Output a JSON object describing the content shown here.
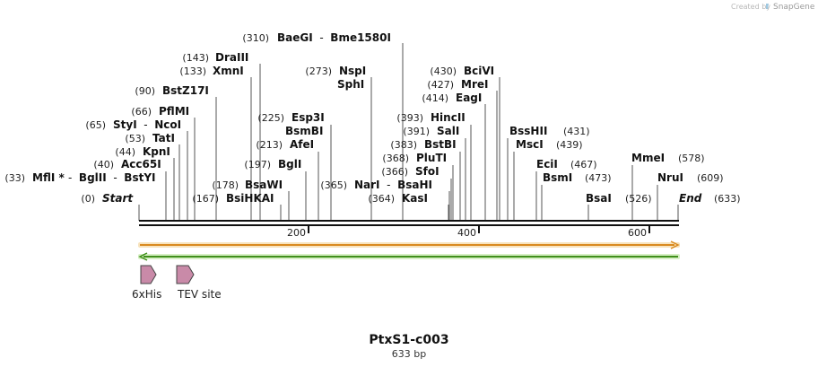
{
  "credit": {
    "prefix": "Created by",
    "brand": "SnapGene"
  },
  "map": {
    "name": "PtxS1-c003",
    "length_label": "633 bp",
    "total_bp": 633
  },
  "ruler": {
    "ticks": [
      "200",
      "400",
      "600"
    ],
    "tick_values": [
      200,
      400,
      600
    ]
  },
  "sites": [
    {
      "pos": 310,
      "pos_label": "(310)",
      "parts": [
        {
          "t": "BaeGI",
          "b": true
        },
        {
          "t": "  -  ",
          "b": false
        },
        {
          "t": "Bme1580I",
          "b": true
        }
      ]
    },
    {
      "pos": 143,
      "pos_label": "(143)",
      "parts": [
        {
          "t": "DraIII",
          "b": true
        }
      ]
    },
    {
      "pos": 133,
      "pos_label": "(133)",
      "parts": [
        {
          "t": "XmnI",
          "b": true
        }
      ]
    },
    {
      "pos": 273,
      "pos_label": "(273)",
      "parts": [
        {
          "t": "NspI",
          "b": true
        }
      ]
    },
    {
      "pos": 273,
      "pos_label": "",
      "parts": [
        {
          "t": "SphI",
          "b": true
        }
      ]
    },
    {
      "pos": 430,
      "pos_label": "(430)",
      "parts": [
        {
          "t": "BciVI",
          "b": true
        }
      ]
    },
    {
      "pos": 427,
      "pos_label": "(427)",
      "parts": [
        {
          "t": "MreI",
          "b": true
        }
      ]
    },
    {
      "pos": 414,
      "pos_label": "(414)",
      "parts": [
        {
          "t": "EagI",
          "b": true
        }
      ]
    },
    {
      "pos": 90,
      "pos_label": "(90)",
      "parts": [
        {
          "t": "BstZ17I",
          "b": true
        }
      ]
    },
    {
      "pos": 66,
      "pos_label": "(66)",
      "parts": [
        {
          "t": "PflMI",
          "b": true
        }
      ]
    },
    {
      "pos": 225,
      "pos_label": "(225)",
      "parts": [
        {
          "t": "Esp3I",
          "b": true
        }
      ]
    },
    {
      "pos": 393,
      "pos_label": "(393)",
      "parts": [
        {
          "t": "HincII",
          "b": true
        }
      ]
    },
    {
      "pos": 65,
      "pos_label": "(65)",
      "parts": [
        {
          "t": "StyI",
          "b": true
        },
        {
          "t": "  -  ",
          "b": false
        },
        {
          "t": "NcoI",
          "b": true
        }
      ]
    },
    {
      "pos": 225,
      "pos_label": "",
      "parts": [
        {
          "t": "BsmBI",
          "b": true
        }
      ]
    },
    {
      "pos": 391,
      "pos_label": "(391)",
      "parts": [
        {
          "t": "SalI",
          "b": true
        }
      ]
    },
    {
      "pos": 431,
      "pos_label": "",
      "parts": [
        {
          "t": "BssHII",
          "b": true
        }
      ]
    },
    {
      "pos": 431,
      "pos_label": "(431)",
      "parts": []
    },
    {
      "pos": 53,
      "pos_label": "(53)",
      "parts": [
        {
          "t": "TatI",
          "b": true
        }
      ]
    },
    {
      "pos": 213,
      "pos_label": "(213)",
      "parts": [
        {
          "t": "AfeI",
          "b": true
        }
      ]
    },
    {
      "pos": 383,
      "pos_label": "(383)",
      "parts": [
        {
          "t": "BstBI",
          "b": true
        }
      ]
    },
    {
      "pos": 439,
      "pos_label": "",
      "parts": [
        {
          "t": "MscI",
          "b": true
        }
      ]
    },
    {
      "pos": 439,
      "pos_label": "(439)",
      "parts": []
    },
    {
      "pos": 44,
      "pos_label": "(44)",
      "parts": [
        {
          "t": "KpnI",
          "b": true
        }
      ]
    },
    {
      "pos": 368,
      "pos_label": "(368)",
      "parts": [
        {
          "t": "PluTI",
          "b": true
        }
      ]
    },
    {
      "pos": 578,
      "pos_label": "",
      "parts": [
        {
          "t": "MmeI",
          "b": true
        }
      ]
    },
    {
      "pos": 578,
      "pos_label": "(578)",
      "parts": []
    },
    {
      "pos": 40,
      "pos_label": "(40)",
      "parts": [
        {
          "t": "Acc65I",
          "b": true
        }
      ]
    },
    {
      "pos": 197,
      "pos_label": "(197)",
      "parts": [
        {
          "t": "BglI",
          "b": true
        }
      ]
    },
    {
      "pos": 467,
      "pos_label": "",
      "parts": [
        {
          "t": "EciI",
          "b": true
        }
      ]
    },
    {
      "pos": 467,
      "pos_label": "(467)",
      "parts": []
    },
    {
      "pos": 366,
      "pos_label": "(366)",
      "parts": [
        {
          "t": "SfoI",
          "b": true
        }
      ]
    },
    {
      "pos": 33,
      "pos_label": "(33)",
      "parts": [
        {
          "t": "MflI",
          "b": true
        },
        {
          "t": " * ",
          "b": true
        },
        {
          "t": "-  ",
          "b": false
        },
        {
          "t": "BglII",
          "b": true
        },
        {
          "t": "  -  ",
          "b": false
        },
        {
          "t": "BstYI",
          "b": true
        }
      ]
    },
    {
      "pos": 473,
      "pos_label": "",
      "parts": [
        {
          "t": "BsmI",
          "b": true
        }
      ]
    },
    {
      "pos": 473,
      "pos_label": "(473)",
      "parts": []
    },
    {
      "pos": 609,
      "pos_label": "",
      "parts": [
        {
          "t": "NruI",
          "b": true
        }
      ]
    },
    {
      "pos": 609,
      "pos_label": "(609)",
      "parts": []
    },
    {
      "pos": 178,
      "pos_label": "(178)",
      "parts": [
        {
          "t": "BsaWI",
          "b": true
        }
      ]
    },
    {
      "pos": 365,
      "pos_label": "(365)",
      "parts": [
        {
          "t": "NarI",
          "b": true
        },
        {
          "t": "  -  ",
          "b": false
        },
        {
          "t": "BsaHI",
          "b": true
        }
      ]
    },
    {
      "pos": 0,
      "pos_label": "(0)",
      "parts": [
        {
          "t": "Start",
          "b": true,
          "i": true
        }
      ]
    },
    {
      "pos": 167,
      "pos_label": "(167)",
      "parts": [
        {
          "t": "BsiHKAI",
          "b": true
        }
      ]
    },
    {
      "pos": 364,
      "pos_label": "(364)",
      "parts": [
        {
          "t": "KasI",
          "b": true
        }
      ]
    },
    {
      "pos": 526,
      "pos_label": "",
      "parts": [
        {
          "t": "BsaI",
          "b": true
        }
      ]
    },
    {
      "pos": 526,
      "pos_label": "(526)",
      "parts": []
    },
    {
      "pos": 633,
      "pos_label": "",
      "parts": [
        {
          "t": "End",
          "b": true,
          "i": true
        }
      ]
    },
    {
      "pos": 633,
      "pos_label": "(633)",
      "parts": []
    }
  ],
  "features": [
    {
      "name": "6xHis",
      "start": 1,
      "end": 18,
      "color": "#c98aa8"
    },
    {
      "name": "TEV site",
      "start": 43,
      "end": 63,
      "color": "#c98aa8"
    }
  ],
  "strands": {
    "forward_color": "#e8a23a",
    "reverse_color": "#5aa528"
  }
}
